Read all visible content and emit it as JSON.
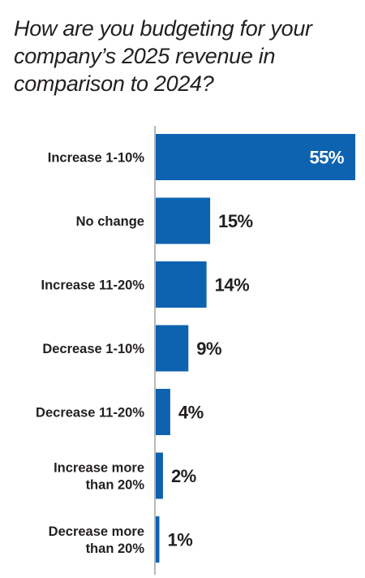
{
  "chart_data": {
    "type": "bar",
    "orientation": "horizontal",
    "title": "How are you budgeting for your company’s 2025 revenue in comparison to 2024?",
    "categories": [
      [
        "Increase 1-10%"
      ],
      [
        "No change"
      ],
      [
        "Increase 11-20%"
      ],
      [
        "Decrease 1-10%"
      ],
      [
        "Decrease 11-20%"
      ],
      [
        "Increase more",
        "than 20%"
      ],
      [
        "Decrease more",
        "than 20%"
      ]
    ],
    "values": [
      55,
      15,
      14,
      9,
      4,
      2,
      1
    ],
    "value_labels": [
      "55%",
      "15%",
      "14%",
      "9%",
      "4%",
      "2%",
      "1%"
    ],
    "value_unit": "%",
    "xlim": [
      0,
      55
    ],
    "grid": false,
    "legend": "none",
    "colors": {
      "bar": "#0e63b0",
      "axis": "#9d9fa2",
      "text": "#231f20",
      "inside_label": "#ffffff"
    }
  }
}
